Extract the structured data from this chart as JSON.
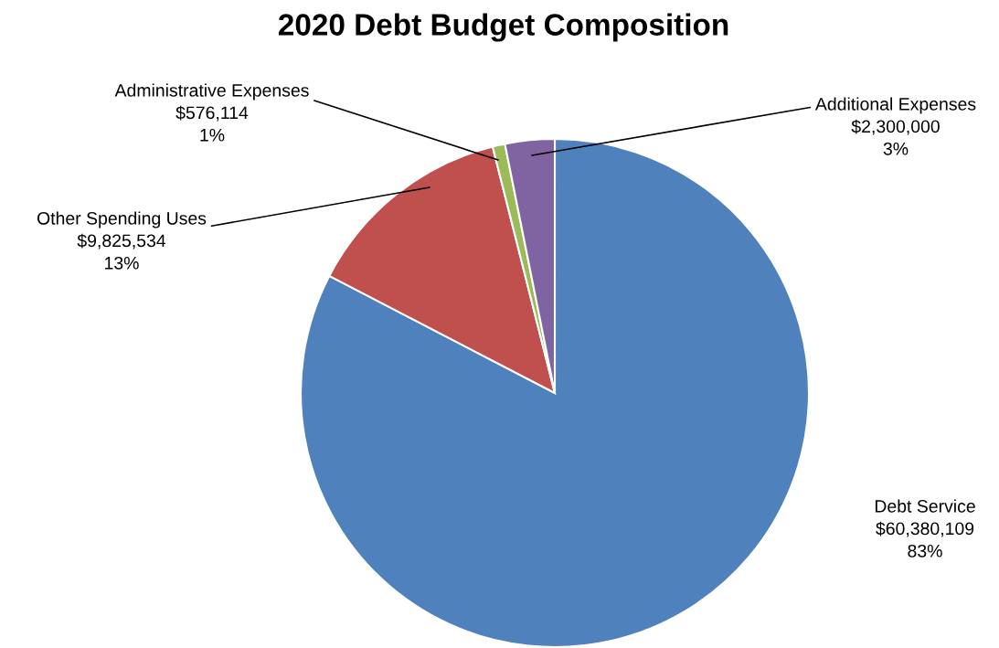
{
  "chart_data": {
    "type": "pie",
    "title": "2020 Debt Budget Composition",
    "categories": [
      "Debt Service",
      "Other Spending Uses",
      "Administrative Expenses",
      "Additional Expenses"
    ],
    "values": [
      60380109,
      9825534,
      576114,
      2300000
    ],
    "colors": [
      "#4f81bd",
      "#c0504d",
      "#9bbb59",
      "#8064a2"
    ],
    "value_labels": [
      "$60,380,109\n83%",
      "$9,825,534\n13%",
      "$576,114\n1%",
      "$2,300,000\n3%"
    ]
  }
}
